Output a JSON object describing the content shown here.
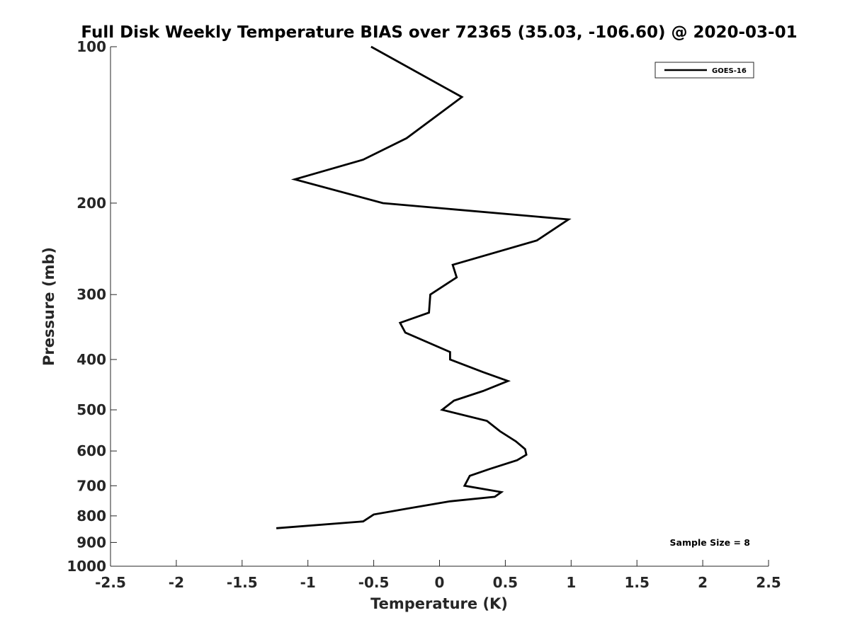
{
  "chart_data": {
    "type": "line",
    "title": "Full Disk Weekly Temperature BIAS over 72365 (35.03, -106.60) @ 2020-03-01",
    "xlabel": "Temperature (K)",
    "ylabel": "Pressure (mb)",
    "xlim": [
      -2.5,
      2.5
    ],
    "ylim": [
      100,
      1000
    ],
    "yscale": "log",
    "yreversed": true,
    "xticks": [
      -2.5,
      -2,
      -1.5,
      -1,
      -0.5,
      0,
      0.5,
      1,
      1.5,
      2,
      2.5
    ],
    "xtick_labels": [
      "-2.5",
      "-2",
      "-1.5",
      "-1",
      "-0.5",
      "0",
      "0.5",
      "1",
      "1.5",
      "2",
      "2.5"
    ],
    "yticks": [
      100,
      200,
      300,
      400,
      500,
      600,
      700,
      800,
      900,
      1000
    ],
    "ytick_labels": [
      "100",
      "200",
      "300",
      "400",
      "500",
      "600",
      "700",
      "800",
      "900",
      "1000"
    ],
    "grid": false,
    "legend_position": "top-right",
    "annotation": "Sample Size = 8",
    "series": [
      {
        "name": "GOES-16",
        "color": "#000000",
        "points": [
          {
            "p": 100,
            "t": -0.52
          },
          {
            "p": 125,
            "t": 0.17
          },
          {
            "p": 150,
            "t": -0.25
          },
          {
            "p": 165,
            "t": -0.58
          },
          {
            "p": 180,
            "t": -1.1
          },
          {
            "p": 200,
            "t": -0.43
          },
          {
            "p": 215,
            "t": 0.98
          },
          {
            "p": 236,
            "t": 0.74
          },
          {
            "p": 263,
            "t": 0.1
          },
          {
            "p": 278,
            "t": 0.13
          },
          {
            "p": 300,
            "t": -0.07
          },
          {
            "p": 325,
            "t": -0.08
          },
          {
            "p": 340,
            "t": -0.3
          },
          {
            "p": 355,
            "t": -0.26
          },
          {
            "p": 387,
            "t": 0.08
          },
          {
            "p": 400,
            "t": 0.08
          },
          {
            "p": 423,
            "t": 0.33
          },
          {
            "p": 440,
            "t": 0.52
          },
          {
            "p": 460,
            "t": 0.33
          },
          {
            "p": 480,
            "t": 0.11
          },
          {
            "p": 500,
            "t": 0.02
          },
          {
            "p": 525,
            "t": 0.36
          },
          {
            "p": 550,
            "t": 0.46
          },
          {
            "p": 575,
            "t": 0.58
          },
          {
            "p": 595,
            "t": 0.65
          },
          {
            "p": 610,
            "t": 0.66
          },
          {
            "p": 625,
            "t": 0.59
          },
          {
            "p": 650,
            "t": 0.38
          },
          {
            "p": 670,
            "t": 0.23
          },
          {
            "p": 700,
            "t": 0.19
          },
          {
            "p": 720,
            "t": 0.47
          },
          {
            "p": 735,
            "t": 0.42
          },
          {
            "p": 750,
            "t": 0.08
          },
          {
            "p": 775,
            "t": -0.25
          },
          {
            "p": 795,
            "t": -0.5
          },
          {
            "p": 820,
            "t": -0.58
          },
          {
            "p": 845,
            "t": -1.24
          }
        ]
      }
    ]
  }
}
